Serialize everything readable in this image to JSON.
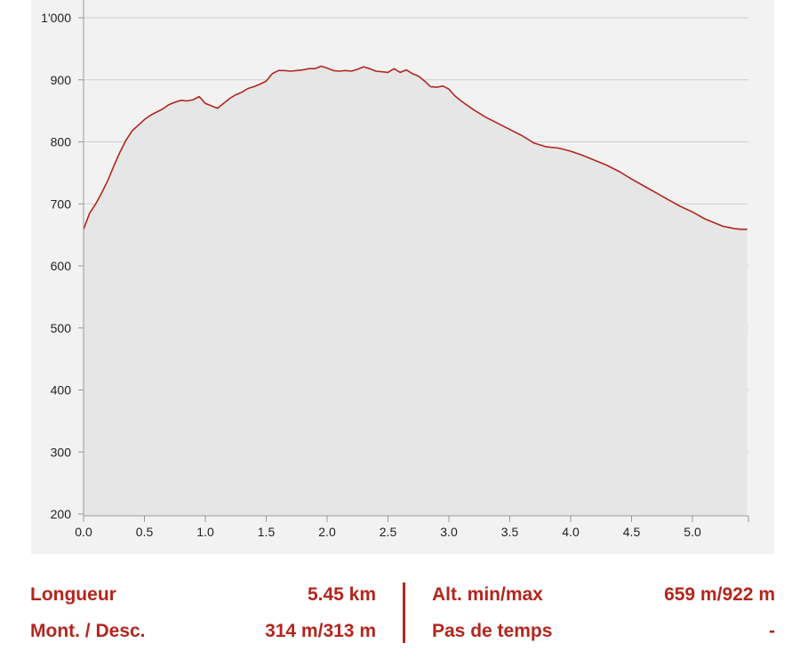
{
  "colors": {
    "accent": "#b3261e",
    "line": "#b3261e",
    "area_fill": "#e6e6e6",
    "panel": "#f2f2f2",
    "grid": "#cfcfcf"
  },
  "chart_data": {
    "type": "area",
    "title": "",
    "xlabel": "",
    "ylabel": "",
    "xlim": [
      0,
      5.45
    ],
    "ylim": [
      200,
      1000
    ],
    "grid": true,
    "x_ticks": [
      0,
      0.5,
      1,
      1.5,
      2,
      2.5,
      3,
      3.5,
      4,
      4.5,
      5
    ],
    "x_tick_labels": [
      "0.0",
      "0.5",
      "1.0",
      "1.5",
      "2.0",
      "2.5",
      "3.0",
      "3.5",
      "4.0",
      "4.5",
      "5.0"
    ],
    "y_ticks": [
      200,
      300,
      400,
      500,
      600,
      700,
      800,
      900,
      1000
    ],
    "y_tick_labels": [
      "200",
      "300",
      "400",
      "500",
      "600",
      "700",
      "800",
      "900",
      "1'000"
    ],
    "series": [
      {
        "x": [
          0,
          0.05,
          0.1,
          0.15,
          0.2,
          0.25,
          0.3,
          0.35,
          0.4,
          0.45,
          0.5,
          0.55,
          0.6,
          0.65,
          0.7,
          0.75,
          0.8,
          0.85,
          0.9,
          0.95,
          1.0,
          1.05,
          1.1,
          1.15,
          1.2,
          1.25,
          1.3,
          1.35,
          1.4,
          1.45,
          1.5,
          1.55,
          1.6,
          1.65,
          1.7,
          1.75,
          1.8,
          1.85,
          1.9,
          1.95,
          2.0,
          2.05,
          2.1,
          2.15,
          2.2,
          2.25,
          2.3,
          2.35,
          2.4,
          2.45,
          2.5,
          2.55,
          2.6,
          2.65,
          2.7,
          2.75,
          2.8,
          2.85,
          2.9,
          2.95,
          3.0,
          3.05,
          3.1,
          3.2,
          3.3,
          3.4,
          3.5,
          3.6,
          3.7,
          3.8,
          3.9,
          4.0,
          4.1,
          4.2,
          4.3,
          4.4,
          4.5,
          4.6,
          4.7,
          4.8,
          4.9,
          5.0,
          5.1,
          5.2,
          5.25,
          5.3,
          5.35,
          5.4,
          5.45
        ],
        "y": [
          659,
          685,
          700,
          718,
          738,
          762,
          784,
          803,
          818,
          827,
          836,
          843,
          848,
          853,
          860,
          864,
          867,
          866,
          868,
          873,
          862,
          858,
          854,
          862,
          870,
          876,
          880,
          886,
          889,
          893,
          898,
          910,
          915,
          915,
          914,
          915,
          916,
          918,
          918,
          922,
          919,
          915,
          914,
          915,
          914,
          917,
          921,
          918,
          914,
          913,
          912,
          918,
          912,
          916,
          910,
          906,
          898,
          889,
          888,
          890,
          885,
          874,
          866,
          852,
          840,
          830,
          820,
          810,
          798,
          792,
          790,
          785,
          778,
          770,
          762,
          752,
          740,
          729,
          718,
          707,
          696,
          687,
          676,
          668,
          664,
          662,
          660,
          659,
          659
        ]
      }
    ]
  },
  "stats": {
    "length_label": "Longueur",
    "length_value": "5.45 km",
    "updown_label": "Mont. / Desc.",
    "updown_value": "314 m/313 m",
    "alt_label": "Alt. min/max",
    "alt_value": "659 m/922 m",
    "time_label": "Pas de temps",
    "time_value": "-"
  }
}
